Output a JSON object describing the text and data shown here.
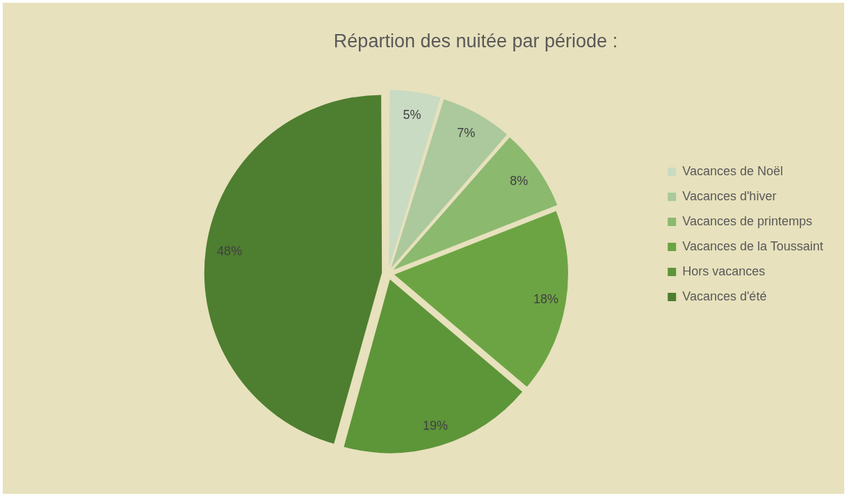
{
  "chart_data": {
    "type": "pie",
    "title": "Répartion des nuitée par période :",
    "categories": [
      "Vacances de Noël",
      "Vacances d'hiver",
      "Vacances de printemps",
      "Vacances de la Toussaint",
      "Hors vacances",
      "Vacances d'été"
    ],
    "values": [
      5,
      7,
      8,
      18,
      19,
      48
    ],
    "colors": [
      "#c9dbc2",
      "#abc99c",
      "#8bb96e",
      "#6ca443",
      "#5d9539",
      "#4e7e30"
    ],
    "value_labels": [
      "5%",
      "7%",
      "8%",
      "18%",
      "19%",
      "48%"
    ],
    "legend": "right"
  }
}
